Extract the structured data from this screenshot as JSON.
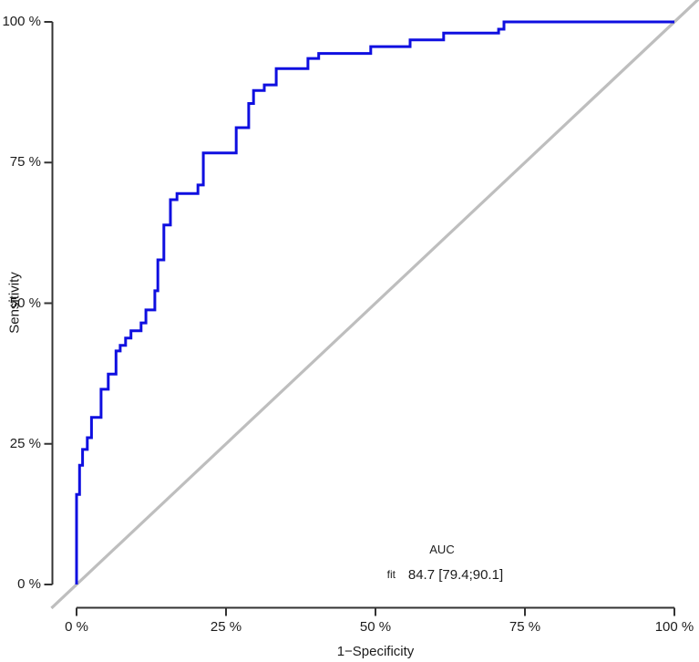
{
  "figure": {
    "background": "#ffffff",
    "axis_color": "#333333",
    "text_color": "#1c1c1c"
  },
  "chart_data": {
    "type": "line",
    "subtype": "roc-step-curve",
    "title": "",
    "xlabel": "1−Specificity",
    "ylabel": "Sensitivity",
    "xlim": [
      0,
      100
    ],
    "ylim": [
      0,
      100
    ],
    "grid": false,
    "legend": "none",
    "x_ticks": [
      {
        "value": 0,
        "label": "0 %"
      },
      {
        "value": 25,
        "label": "25 %"
      },
      {
        "value": 50,
        "label": "50 %"
      },
      {
        "value": 75,
        "label": "75 %"
      },
      {
        "value": 100,
        "label": "100 %"
      }
    ],
    "y_ticks": [
      {
        "value": 0,
        "label": "0 %"
      },
      {
        "value": 25,
        "label": "25 %"
      },
      {
        "value": 50,
        "label": "50 %"
      },
      {
        "value": 75,
        "label": "75 %"
      },
      {
        "value": 100,
        "label": "100 %"
      }
    ],
    "diagonal": {
      "color": "#bebebe",
      "from": [
        -4.2,
        -4.2
      ],
      "to": [
        104,
        104
      ]
    },
    "series": [
      {
        "name": "fit",
        "color": "#0f0fe0",
        "points": [
          [
            0,
            0
          ],
          [
            0,
            16
          ],
          [
            0.5,
            16
          ],
          [
            0.5,
            21.2
          ],
          [
            1,
            21.2
          ],
          [
            1,
            24
          ],
          [
            1.8,
            24
          ],
          [
            1.8,
            26.1
          ],
          [
            2.5,
            26.1
          ],
          [
            2.5,
            29.7
          ],
          [
            4.1,
            29.7
          ],
          [
            4.1,
            34.7
          ],
          [
            5.3,
            34.7
          ],
          [
            5.3,
            37.4
          ],
          [
            6.6,
            37.4
          ],
          [
            6.6,
            41.5
          ],
          [
            7.3,
            41.5
          ],
          [
            7.3,
            42.5
          ],
          [
            8.2,
            42.5
          ],
          [
            8.2,
            43.8
          ],
          [
            9.1,
            43.8
          ],
          [
            9.1,
            45.1
          ],
          [
            10.8,
            45.1
          ],
          [
            10.8,
            46.5
          ],
          [
            11.6,
            46.5
          ],
          [
            11.6,
            48.8
          ],
          [
            13.1,
            48.8
          ],
          [
            13.1,
            52.2
          ],
          [
            13.6,
            52.2
          ],
          [
            13.6,
            57.7
          ],
          [
            14.6,
            57.7
          ],
          [
            14.6,
            63.9
          ],
          [
            15.7,
            63.9
          ],
          [
            15.7,
            68.4
          ],
          [
            16.8,
            68.4
          ],
          [
            16.8,
            69.5
          ],
          [
            20.3,
            69.5
          ],
          [
            20.3,
            71
          ],
          [
            21.2,
            71
          ],
          [
            21.2,
            76.7
          ],
          [
            26.7,
            76.7
          ],
          [
            26.7,
            81.2
          ],
          [
            28.8,
            81.2
          ],
          [
            28.8,
            85.5
          ],
          [
            29.6,
            85.5
          ],
          [
            29.6,
            87.8
          ],
          [
            31.4,
            87.8
          ],
          [
            31.4,
            88.8
          ],
          [
            33.4,
            88.8
          ],
          [
            33.4,
            91.7
          ],
          [
            38.7,
            91.7
          ],
          [
            38.7,
            93.5
          ],
          [
            40.5,
            93.5
          ],
          [
            40.5,
            94.4
          ],
          [
            49.2,
            94.4
          ],
          [
            49.2,
            95.6
          ],
          [
            55.8,
            95.6
          ],
          [
            55.8,
            96.8
          ],
          [
            61.4,
            96.8
          ],
          [
            61.4,
            98
          ],
          [
            70.6,
            98
          ],
          [
            70.6,
            98.7
          ],
          [
            71.5,
            98.7
          ],
          [
            71.5,
            100
          ],
          [
            100,
            100
          ]
        ]
      }
    ],
    "annotation": {
      "header": "AUC",
      "row_label": "fit",
      "value": "84.7 [79.4;90.1]"
    }
  }
}
